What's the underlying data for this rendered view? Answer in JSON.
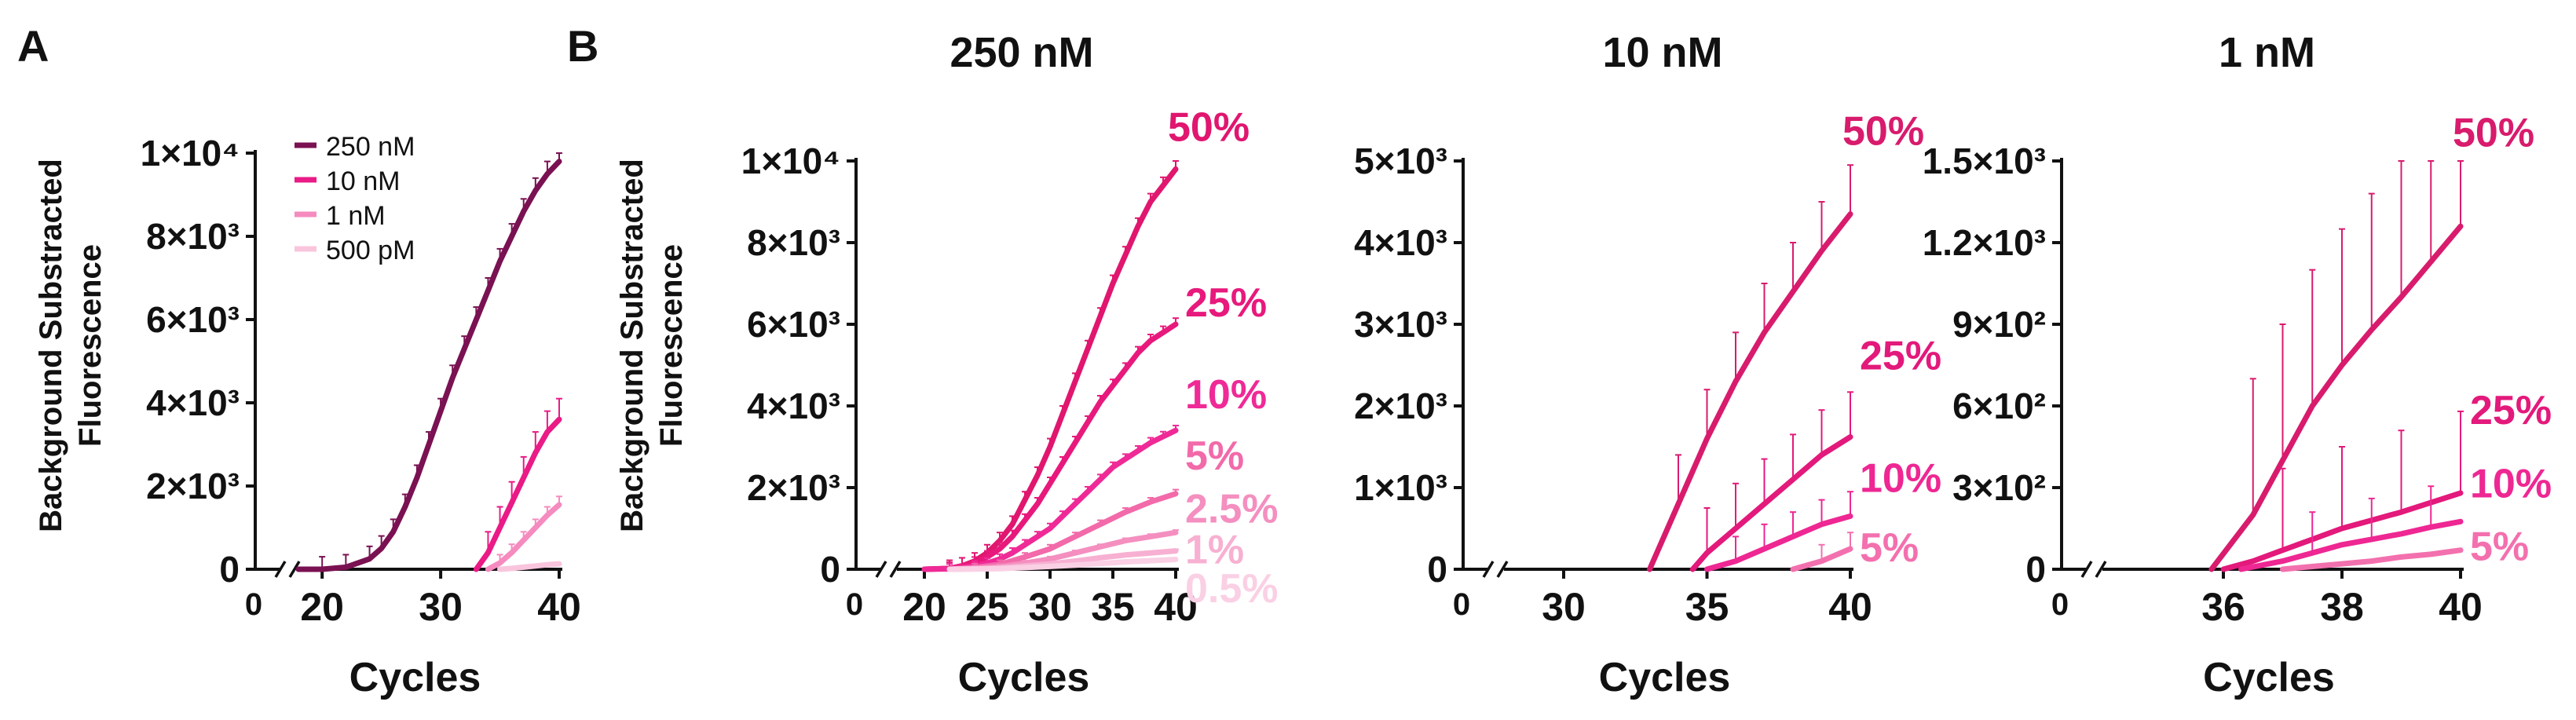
{
  "figure": {
    "panel_a_label": "A",
    "panel_b_label": "B",
    "shared_ylabel_line1": "Background Substracted",
    "shared_ylabel_line2": "Fluorescence"
  },
  "chart_data": [
    {
      "id": "A",
      "type": "line",
      "title": "",
      "xlabel": "Cycles",
      "xlim": [
        18,
        40
      ],
      "ylim": [
        0,
        10000
      ],
      "zero_label": "0",
      "xticks": [
        20,
        30,
        40
      ],
      "yticks": [
        0,
        2000,
        4000,
        6000,
        8000,
        10000
      ],
      "ytick_labels": [
        "0",
        "2×10³",
        "4×10³",
        "6×10³",
        "8×10³",
        "1×10⁴"
      ],
      "legend": {
        "position": "top-left"
      },
      "series": [
        {
          "name": "250 nM",
          "color": "#7a1152",
          "x": [
            18,
            20,
            22,
            24,
            25,
            26,
            27,
            28,
            29,
            30,
            31,
            32,
            33,
            34,
            35,
            36,
            37,
            38,
            39,
            40
          ],
          "y": [
            0,
            0,
            50,
            250,
            500,
            900,
            1500,
            2200,
            3000,
            3800,
            4600,
            5300,
            6000,
            6700,
            7400,
            8000,
            8600,
            9100,
            9500,
            9800
          ],
          "err_every": 1,
          "err": 300
        },
        {
          "name": "10 nM",
          "color": "#ea1a86",
          "x": [
            33,
            34,
            35,
            36,
            37,
            38,
            39,
            40
          ],
          "y": [
            0,
            400,
            1000,
            1600,
            2200,
            2800,
            3300,
            3600
          ],
          "err_every": 1,
          "err": 500
        },
        {
          "name": "1 nM",
          "color": "#f58bbf",
          "x": [
            34,
            35,
            36,
            37,
            38,
            39,
            40
          ],
          "y": [
            0,
            150,
            400,
            700,
            1000,
            1300,
            1550
          ],
          "err_every": 1,
          "err": 200
        },
        {
          "name": "500 pM",
          "color": "#f9c5dd",
          "x": [
            35,
            36,
            37,
            38,
            39,
            40
          ],
          "y": [
            0,
            20,
            50,
            80,
            110,
            130
          ],
          "err_every": 0,
          "err": 0
        }
      ]
    },
    {
      "id": "B1",
      "type": "line",
      "title": "250 nM",
      "xlabel": "Cycles",
      "xlim": [
        18,
        40
      ],
      "ylim": [
        0,
        10000
      ],
      "zero_label": "0",
      "xticks": [
        20,
        25,
        30,
        35,
        40
      ],
      "yticks": [
        0,
        2000,
        4000,
        6000,
        8000,
        10000
      ],
      "ytick_labels": [
        "0",
        "2×10³",
        "4×10³",
        "6×10³",
        "8×10³",
        "1×10⁴"
      ],
      "series": [
        {
          "name": "50%",
          "color": "#e0166f",
          "label_y": 10800,
          "x": [
            20,
            22,
            23,
            24,
            25,
            26,
            27,
            28,
            29,
            30,
            31,
            32,
            33,
            34,
            35,
            36,
            37,
            38,
            39,
            40
          ],
          "y": [
            0,
            20,
            80,
            200,
            400,
            700,
            1100,
            1700,
            2300,
            3000,
            3800,
            4600,
            5400,
            6200,
            7000,
            7700,
            8400,
            9000,
            9400,
            9800
          ],
          "err_every": 1,
          "err": 200
        },
        {
          "name": "25%",
          "color": "#e8197c",
          "label_y": 6500,
          "x": [
            20,
            22,
            24,
            25,
            26,
            27,
            28,
            29,
            30,
            31,
            32,
            33,
            34,
            35,
            36,
            37,
            38,
            39,
            40
          ],
          "y": [
            0,
            20,
            150,
            300,
            500,
            800,
            1200,
            1600,
            2100,
            2600,
            3100,
            3600,
            4100,
            4500,
            4900,
            5300,
            5600,
            5800,
            6000
          ],
          "err_every": 1,
          "err": 150
        },
        {
          "name": "10%",
          "color": "#ef2a97",
          "label_y": 4250,
          "x": [
            20,
            22,
            24,
            25,
            26,
            27,
            28,
            29,
            30,
            31,
            32,
            33,
            34,
            35,
            36,
            37,
            38,
            39,
            40
          ],
          "y": [
            0,
            10,
            80,
            150,
            250,
            400,
            600,
            800,
            1000,
            1300,
            1600,
            1900,
            2200,
            2500,
            2700,
            2900,
            3100,
            3250,
            3400
          ],
          "err_every": 1,
          "err": 120
        },
        {
          "name": "5%",
          "color": "#f26aa9",
          "label_y": 2750,
          "x": [
            22,
            24,
            26,
            28,
            30,
            32,
            34,
            36,
            38,
            40
          ],
          "y": [
            0,
            40,
            120,
            300,
            500,
            800,
            1100,
            1400,
            1650,
            1850
          ],
          "err_every": 1,
          "err": 100
        },
        {
          "name": "2.5%",
          "color": "#f48fc0",
          "label_y": 1450,
          "x": [
            22,
            24,
            26,
            28,
            30,
            32,
            34,
            36,
            38,
            40
          ],
          "y": [
            0,
            20,
            60,
            150,
            250,
            400,
            550,
            700,
            800,
            900
          ],
          "err_every": 1,
          "err": 60
        },
        {
          "name": "1%",
          "color": "#f7b0d2",
          "label_y": 450,
          "x": [
            22,
            24,
            26,
            28,
            30,
            32,
            34,
            36,
            38,
            40
          ],
          "y": [
            0,
            10,
            30,
            80,
            130,
            200,
            280,
            350,
            400,
            450
          ],
          "err_every": 1,
          "err": 40
        },
        {
          "name": "0.5%",
          "color": "#fad0e4",
          "label_y": -500,
          "x": [
            22,
            24,
            26,
            28,
            30,
            32,
            34,
            36,
            38,
            40
          ],
          "y": [
            0,
            5,
            15,
            40,
            70,
            100,
            140,
            180,
            210,
            240
          ],
          "err_every": 0,
          "err": 0
        }
      ]
    },
    {
      "id": "B2",
      "type": "line",
      "title": "10 nM",
      "xlabel": "Cycles",
      "xlim": [
        28,
        40
      ],
      "ylim": [
        0,
        5000
      ],
      "zero_label": "0",
      "xticks": [
        30,
        35,
        40
      ],
      "yticks": [
        0,
        1000,
        2000,
        3000,
        4000,
        5000
      ],
      "ytick_labels": [
        "0",
        "1×10³",
        "2×10³",
        "3×10³",
        "4×10³",
        "5×10³"
      ],
      "series": [
        {
          "name": "50%",
          "color": "#d81b6d",
          "label_y": 5350,
          "x": [
            33,
            34,
            35,
            36,
            37,
            38,
            39,
            40
          ],
          "y": [
            0,
            800,
            1600,
            2300,
            2900,
            3400,
            3900,
            4350
          ],
          "err_every": 1,
          "err": 600
        },
        {
          "name": "25%",
          "color": "#e3197b",
          "label_y": 2600,
          "x": [
            34.5,
            35,
            36,
            37,
            38,
            39,
            40
          ],
          "y": [
            0,
            200,
            500,
            800,
            1100,
            1400,
            1620
          ],
          "err_every": 1,
          "err": 550
        },
        {
          "name": "10%",
          "color": "#ee2793",
          "label_y": 1100,
          "x": [
            35,
            36,
            37,
            38,
            39,
            40
          ],
          "y": [
            0,
            100,
            250,
            400,
            550,
            650
          ],
          "err_every": 1,
          "err": 300
        },
        {
          "name": "5%",
          "color": "#f370ae",
          "label_y": 250,
          "x": [
            38,
            39,
            40
          ],
          "y": [
            0,
            100,
            250
          ],
          "err_every": 1,
          "err": 200
        }
      ]
    },
    {
      "id": "B3",
      "type": "line",
      "title": "1 nM",
      "xlabel": "Cycles",
      "xlim": [
        34,
        40
      ],
      "ylim": [
        0,
        1500
      ],
      "zero_label": "0",
      "xticks": [
        36,
        38,
        40
      ],
      "yticks": [
        0,
        300,
        600,
        900,
        1200,
        1500
      ],
      "ytick_labels": [
        "0",
        "3×10²",
        "6×10²",
        "9×10²",
        "1.2×10³",
        "1.5×10³"
      ],
      "series": [
        {
          "name": "50%",
          "color": "#d81b6d",
          "label_y": 1600,
          "x": [
            35.8,
            36.5,
            37,
            37.5,
            38,
            38.5,
            39,
            39.5,
            40
          ],
          "y": [
            0,
            200,
            400,
            600,
            750,
            880,
            1000,
            1130,
            1260
          ],
          "err_every": 1,
          "err": 500
        },
        {
          "name": "25%",
          "color": "#e3197b",
          "label_y": 580,
          "x": [
            36,
            36.5,
            37,
            37.5,
            38,
            38.5,
            39,
            39.5,
            40
          ],
          "y": [
            0,
            30,
            70,
            110,
            150,
            180,
            210,
            245,
            280
          ],
          "err_every": 2,
          "err": 300
        },
        {
          "name": "10%",
          "color": "#ee2793",
          "label_y": 310,
          "x": [
            36.3,
            37,
            37.5,
            38,
            38.5,
            39,
            39.5,
            40
          ],
          "y": [
            0,
            30,
            60,
            90,
            110,
            130,
            155,
            175
          ],
          "err_every": 2,
          "err": 150
        },
        {
          "name": "5%",
          "color": "#f370ae",
          "label_y": 80,
          "x": [
            37,
            37.5,
            38,
            38.5,
            39,
            39.5,
            40
          ],
          "y": [
            0,
            10,
            20,
            30,
            45,
            55,
            70
          ],
          "err_every": 0,
          "err": 0
        }
      ]
    }
  ]
}
